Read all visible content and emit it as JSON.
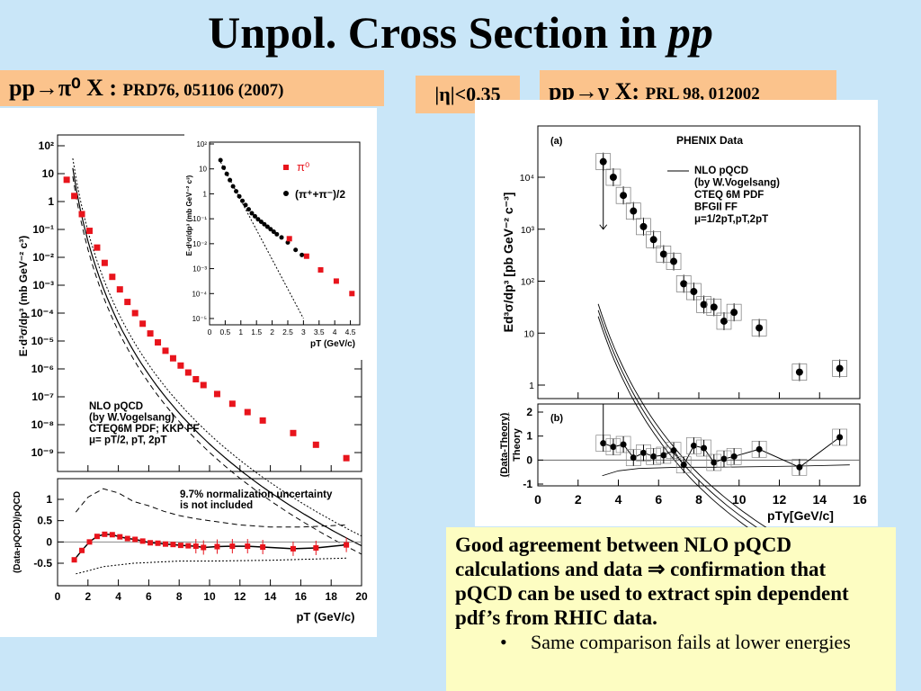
{
  "slide": {
    "title_main": "Unpol. Cross Section in ",
    "title_italic": "pp",
    "left_tag": {
      "reaction": "pp→π⁰ X : ",
      "ref": "PRD76, 051106 (2007)"
    },
    "middle_tag": "|η|<0.35",
    "right_tag": {
      "reaction": "pp→γ X: ",
      "ref": "PRL 98, 012002"
    },
    "conclusion": "Good agreement between NLO pQCD calculations and data ⇒ confirmation that pQCD can be used to extract spin dependent pdf’s from RHIC data.",
    "bullet_mark": "•",
    "bullet_text": "Same comparison fails at lower energies"
  },
  "colors": {
    "background": "#c9e6f8",
    "tag": "#fbc38c",
    "note": "#fdfdc2",
    "pi0": "#e8141c",
    "black": "#000000"
  },
  "chart_data": [
    {
      "id": "pi0-main",
      "type": "scatter",
      "ylabel": "E·d³σ/dp³ (mb GeV⁻² c³)",
      "ylog": true,
      "xlim": [
        0,
        20
      ],
      "ylim_log10": [
        -9.5,
        2.2
      ],
      "ytick_labels": [
        "10²",
        "10",
        "1",
        "10⁻¹",
        "10⁻²",
        "10⁻³",
        "10⁻⁴",
        "10⁻⁵",
        "10⁻⁶",
        "10⁻⁷",
        "10⁻⁸",
        "10⁻⁹"
      ],
      "annotation": "NLO pQCD\n(by W.Vogelsang)\nCTEQ6M PDF; KKP FF\nμ= pT/2, pT, 2pT",
      "x": [
        0.6,
        1.1,
        1.6,
        2.1,
        2.6,
        3.1,
        3.6,
        4.1,
        4.6,
        5.1,
        5.6,
        6.1,
        6.6,
        7.1,
        7.6,
        8.1,
        8.6,
        9.1,
        9.6,
        10.5,
        11.5,
        12.5,
        13.5,
        15.5,
        17.0,
        19.0
      ],
      "log10y": [
        0.78,
        0.2,
        -0.45,
        -1.05,
        -1.65,
        -2.2,
        -2.7,
        -3.15,
        -3.6,
        -4.0,
        -4.38,
        -4.73,
        -5.05,
        -5.35,
        -5.62,
        -5.88,
        -6.13,
        -6.37,
        -6.58,
        -6.9,
        -7.25,
        -7.55,
        -7.85,
        -8.3,
        -8.72,
        -9.2
      ]
    },
    {
      "id": "pi0-ratio",
      "type": "scatter",
      "ylabel": "(Data-pQCD)/pQCD",
      "xlabel": "pT (GeV/c)",
      "xlim": [
        0,
        20
      ],
      "ylim": [
        -0.8,
        1.3
      ],
      "xticks": [
        0,
        2,
        4,
        6,
        8,
        10,
        12,
        14,
        16,
        18,
        20
      ],
      "yticks": [
        1,
        0.5,
        0,
        -0.5
      ],
      "ytick_labels": [
        "1",
        "0.5",
        "0",
        "-0.5"
      ],
      "annotation": "9.7% normalization uncertainty\nis not included",
      "x": [
        1.1,
        1.6,
        2.1,
        2.6,
        3.1,
        3.6,
        4.1,
        4.6,
        5.1,
        5.6,
        6.1,
        6.6,
        7.1,
        7.6,
        8.1,
        8.6,
        9.1,
        9.6,
        10.5,
        11.5,
        12.5,
        13.5,
        15.5,
        17.0,
        19.0
      ],
      "y": [
        -0.42,
        -0.2,
        0.0,
        0.13,
        0.18,
        0.17,
        0.12,
        0.08,
        0.06,
        0.02,
        -0.02,
        -0.03,
        -0.05,
        -0.06,
        -0.08,
        -0.09,
        -0.1,
        -0.13,
        -0.11,
        -0.1,
        -0.1,
        -0.12,
        -0.16,
        -0.14,
        -0.07
      ]
    },
    {
      "id": "pi0-inset",
      "type": "scatter",
      "ylabel": "E·d³σ/dp³ (mb GeV⁻² c³)",
      "xlabel": "pT (GeV/c)",
      "ylog": true,
      "xlim": [
        0,
        4.8
      ],
      "ylim_log10": [
        -5.1,
        2.1
      ],
      "xtick_labels": [
        "0",
        "0.5",
        "1",
        "1.5",
        "2",
        "2.5",
        "3",
        "3.5",
        "4",
        "4.5"
      ],
      "ytick_labels": [
        "10²",
        "10",
        "1",
        "10⁻¹",
        "10⁻²",
        "10⁻³",
        "10⁻⁴",
        "10⁻⁵"
      ],
      "series": [
        {
          "name": "π⁰",
          "x": [
            2.55,
            3.1,
            3.55,
            4.05,
            4.55
          ],
          "log10y": [
            -1.8,
            -2.5,
            -3.05,
            -3.5,
            -4.0
          ]
        },
        {
          "name": "(π⁺+π⁻)/2",
          "x": [
            0.35,
            0.45,
            0.55,
            0.65,
            0.75,
            0.85,
            0.95,
            1.05,
            1.15,
            1.25,
            1.35,
            1.45,
            1.55,
            1.65,
            1.75,
            1.85,
            1.95,
            2.05,
            2.15,
            2.3,
            2.5,
            2.75,
            2.95
          ],
          "log10y": [
            1.35,
            1.05,
            0.8,
            0.55,
            0.3,
            0.1,
            -0.1,
            -0.28,
            -0.45,
            -0.62,
            -0.78,
            -0.9,
            -1.02,
            -1.12,
            -1.22,
            -1.32,
            -1.42,
            -1.52,
            -1.62,
            -1.75,
            -1.95,
            -2.25,
            -2.45
          ]
        }
      ]
    },
    {
      "id": "gamma-main",
      "type": "scatter",
      "title": "PHENIX Data",
      "panel_label": "(a)",
      "ylabel": "Ed³σ/dp³ [pb GeV⁻² c⁻³]",
      "ylog": true,
      "xlim": [
        0,
        16
      ],
      "ylim_log10": [
        -0.25,
        5.1
      ],
      "ytick_labels": [
        "10⁴",
        "10³",
        "10²",
        "10",
        "1"
      ],
      "legend": "NLO pQCD\n(by W.Vogelsang)\nCTEQ 6M PDF\nBFGII FF\nμ=1/2pT,pT,2pT",
      "x": [
        3.25,
        3.75,
        4.25,
        4.75,
        5.25,
        5.75,
        6.25,
        6.75,
        7.25,
        7.75,
        8.25,
        8.75,
        9.25,
        9.75,
        11.0,
        13.0,
        15.0
      ],
      "log10y": [
        4.3,
        4.0,
        3.65,
        3.35,
        3.05,
        2.8,
        2.52,
        2.38,
        1.95,
        1.8,
        1.55,
        1.5,
        1.23,
        1.4,
        1.1,
        0.25,
        0.32
      ]
    },
    {
      "id": "gamma-ratio",
      "type": "scatter",
      "panel_label": "(b)",
      "ylabel": "(Data-Theory)\nTheory",
      "xlabel": "pTγ[GeV/c]",
      "xlim": [
        0,
        16
      ],
      "ylim": [
        -1.2,
        2.3
      ],
      "xticks": [
        0,
        2,
        4,
        6,
        8,
        10,
        12,
        14,
        16
      ],
      "yticks": [
        2,
        1,
        0,
        -1
      ],
      "x": [
        3.25,
        3.75,
        4.25,
        4.75,
        5.25,
        5.75,
        6.25,
        6.75,
        7.25,
        7.75,
        8.25,
        8.75,
        9.25,
        9.75,
        11.0,
        13.0,
        15.0
      ],
      "y": [
        0.7,
        0.55,
        0.65,
        0.1,
        0.3,
        0.15,
        0.2,
        0.4,
        -0.2,
        0.6,
        0.5,
        -0.1,
        0.05,
        0.15,
        0.45,
        -0.3,
        0.95
      ]
    }
  ],
  "axis_text": {
    "x_tick_labels_main": [
      "0",
      "2",
      "4",
      "6",
      "8",
      "10",
      "12",
      "14",
      "16",
      "18",
      "20"
    ],
    "x_tick_labels_gamma": [
      "0",
      "2",
      "4",
      "6",
      "8",
      "10",
      "12",
      "14",
      "16"
    ],
    "ytick_labels_gamma_ratio": [
      "2",
      "1",
      "0",
      "-1"
    ]
  }
}
